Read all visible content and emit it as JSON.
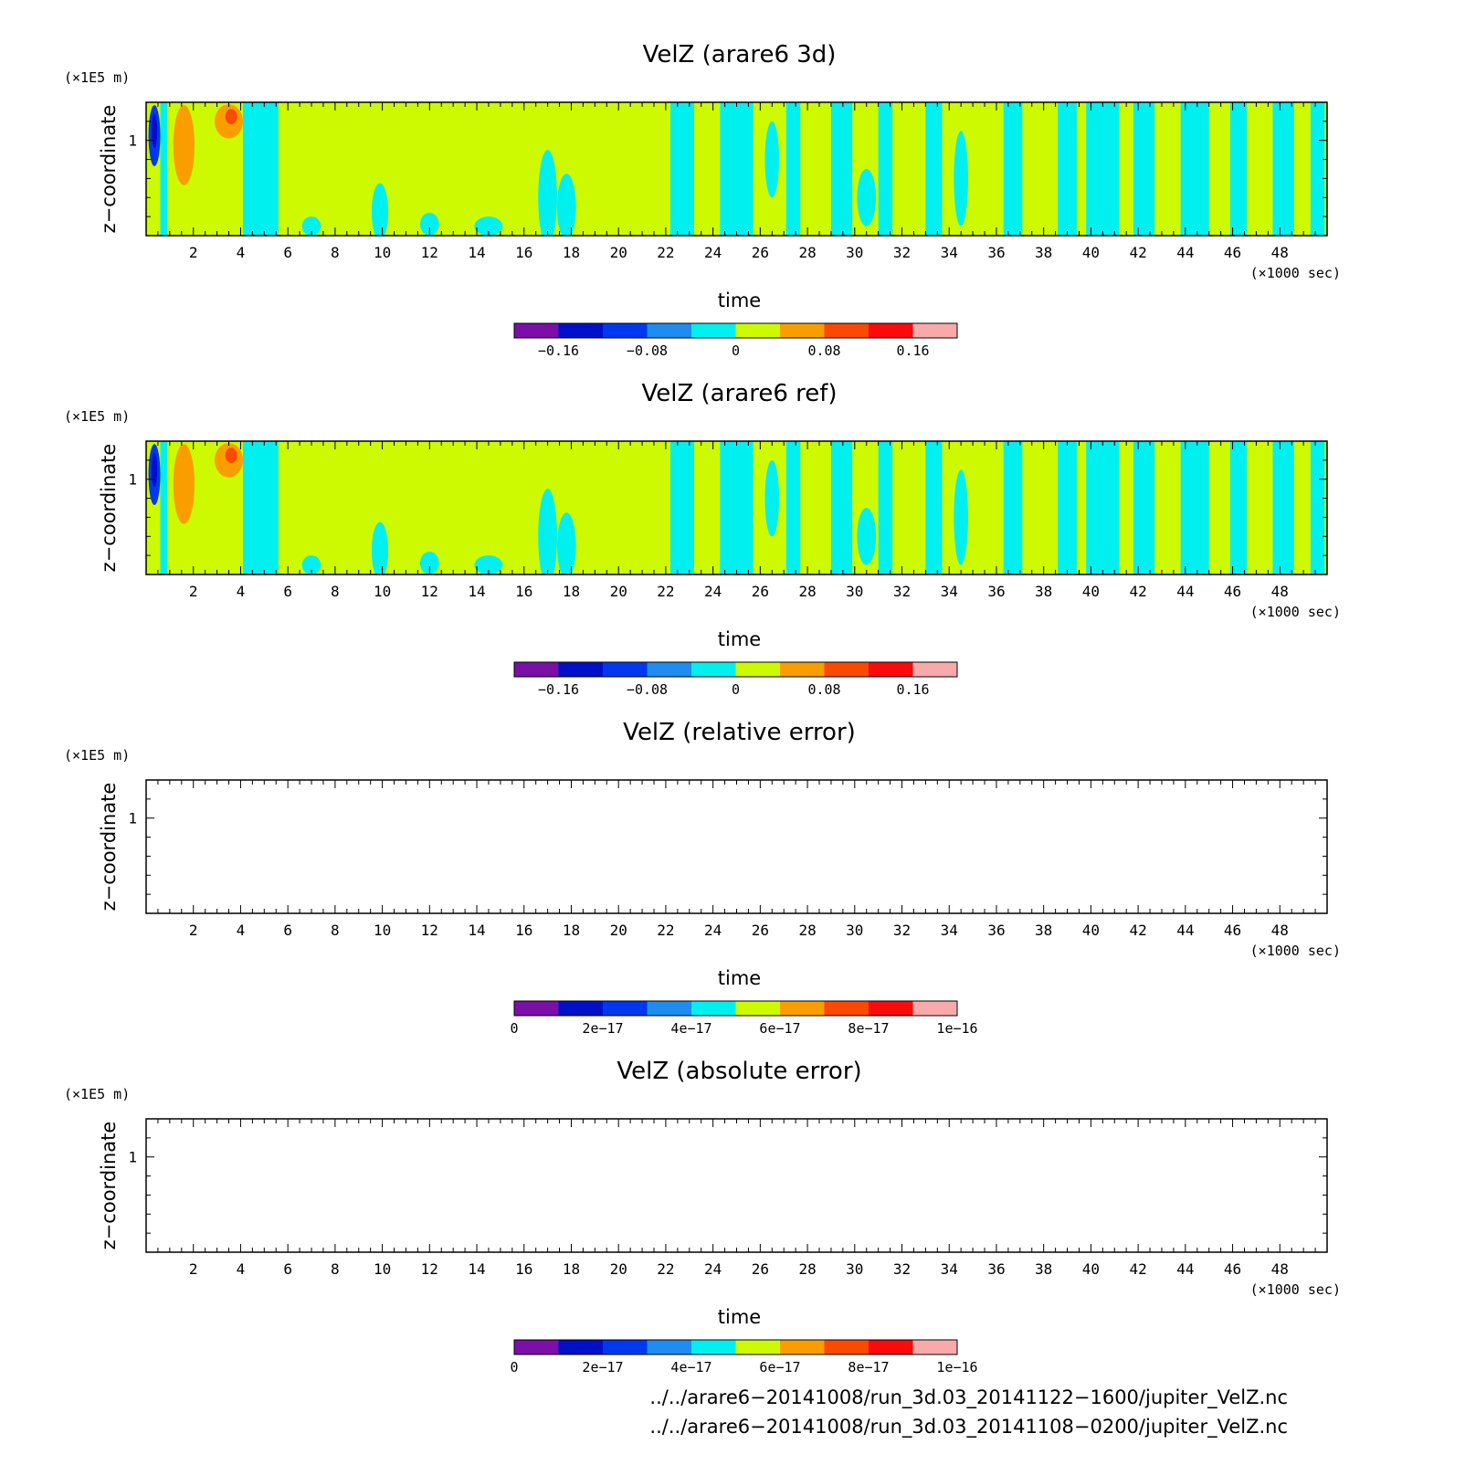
{
  "chart_data": [
    {
      "type": "heatmap",
      "title": "VelZ (arare6 3d)",
      "xlabel": "time",
      "x_unit": "(×1000 sec)",
      "ylabel": "z−coordinate",
      "y_unit": "(×1E5 m)",
      "xlim": [
        0,
        50
      ],
      "ylim": [
        0,
        1.4
      ],
      "x_ticks": [
        "2",
        "4",
        "6",
        "8",
        "10",
        "12",
        "14",
        "16",
        "18",
        "20",
        "22",
        "24",
        "26",
        "28",
        "30",
        "32",
        "34",
        "36",
        "38",
        "40",
        "42",
        "44",
        "46",
        "48"
      ],
      "y_ticks": [
        "1"
      ],
      "colorbar": {
        "levels": [
          -0.2,
          -0.16,
          -0.12,
          -0.08,
          -0.04,
          0,
          0.04,
          0.08,
          0.12,
          0.16,
          0.2
        ],
        "tick_labels": [
          "−0.16",
          "−0.08",
          "0",
          "0.08",
          "0.16"
        ],
        "tick_values": [
          -0.16,
          -0.08,
          0,
          0.08,
          0.16
        ]
      },
      "field": "velz"
    },
    {
      "type": "heatmap",
      "title": "VelZ (arare6 ref)",
      "xlabel": "time",
      "x_unit": "(×1000 sec)",
      "ylabel": "z−coordinate",
      "y_unit": "(×1E5 m)",
      "xlim": [
        0,
        50
      ],
      "ylim": [
        0,
        1.4
      ],
      "x_ticks": [
        "2",
        "4",
        "6",
        "8",
        "10",
        "12",
        "14",
        "16",
        "18",
        "20",
        "22",
        "24",
        "26",
        "28",
        "30",
        "32",
        "34",
        "36",
        "38",
        "40",
        "42",
        "44",
        "46",
        "48"
      ],
      "y_ticks": [
        "1"
      ],
      "colorbar": {
        "levels": [
          -0.2,
          -0.16,
          -0.12,
          -0.08,
          -0.04,
          0,
          0.04,
          0.08,
          0.12,
          0.16,
          0.2
        ],
        "tick_labels": [
          "−0.16",
          "−0.08",
          "0",
          "0.08",
          "0.16"
        ],
        "tick_values": [
          -0.16,
          -0.08,
          0,
          0.08,
          0.16
        ]
      },
      "field": "velz"
    },
    {
      "type": "heatmap",
      "title": "VelZ (relative error)",
      "xlabel": "time",
      "x_unit": "(×1000 sec)",
      "ylabel": "z−coordinate",
      "y_unit": "(×1E5 m)",
      "xlim": [
        0,
        50
      ],
      "ylim": [
        0,
        1.4
      ],
      "x_ticks": [
        "2",
        "4",
        "6",
        "8",
        "10",
        "12",
        "14",
        "16",
        "18",
        "20",
        "22",
        "24",
        "26",
        "28",
        "30",
        "32",
        "34",
        "36",
        "38",
        "40",
        "42",
        "44",
        "46",
        "48"
      ],
      "y_ticks": [
        "1"
      ],
      "colorbar": {
        "levels": [
          0,
          1e-17,
          2e-17,
          3e-17,
          4e-17,
          5e-17,
          6e-17,
          7e-17,
          8e-17,
          9e-17,
          1e-16
        ],
        "tick_labels": [
          "0",
          "2e−17",
          "4e−17",
          "6e−17",
          "8e−17",
          "1e−16"
        ],
        "tick_values": [
          0,
          2e-17,
          4e-17,
          6e-17,
          8e-17,
          1e-16
        ]
      },
      "field": "empty"
    },
    {
      "type": "heatmap",
      "title": "VelZ (absolute error)",
      "xlabel": "time",
      "x_unit": "(×1000 sec)",
      "ylabel": "z−coordinate",
      "y_unit": "(×1E5 m)",
      "xlim": [
        0,
        50
      ],
      "ylim": [
        0,
        1.4
      ],
      "x_ticks": [
        "2",
        "4",
        "6",
        "8",
        "10",
        "12",
        "14",
        "16",
        "18",
        "20",
        "22",
        "24",
        "26",
        "28",
        "30",
        "32",
        "34",
        "36",
        "38",
        "40",
        "42",
        "44",
        "46",
        "48"
      ],
      "y_ticks": [
        "1"
      ],
      "colorbar": {
        "levels": [
          0,
          1e-17,
          2e-17,
          3e-17,
          4e-17,
          5e-17,
          6e-17,
          7e-17,
          8e-17,
          9e-17,
          1e-16
        ],
        "tick_labels": [
          "0",
          "2e−17",
          "4e−17",
          "6e−17",
          "8e−17",
          "1e−16"
        ],
        "tick_values": [
          0,
          2e-17,
          4e-17,
          6e-17,
          8e-17,
          1e-16
        ]
      },
      "field": "empty"
    }
  ],
  "colors": [
    "#7b0fa8",
    "#0010c8",
    "#0038f0",
    "#1e8cf0",
    "#00f0f0",
    "#cdfa00",
    "#fa9e00",
    "#fa4a00",
    "#fa0a0a",
    "#f8aaaa"
  ],
  "footer": {
    "line1": "../../arare6−20141008/run_3d.03_20141122−1600/jupiter_VelZ.nc",
    "line2": "../../arare6−20141008/run_3d.03_20141108−0200/jupiter_VelZ.nc"
  }
}
